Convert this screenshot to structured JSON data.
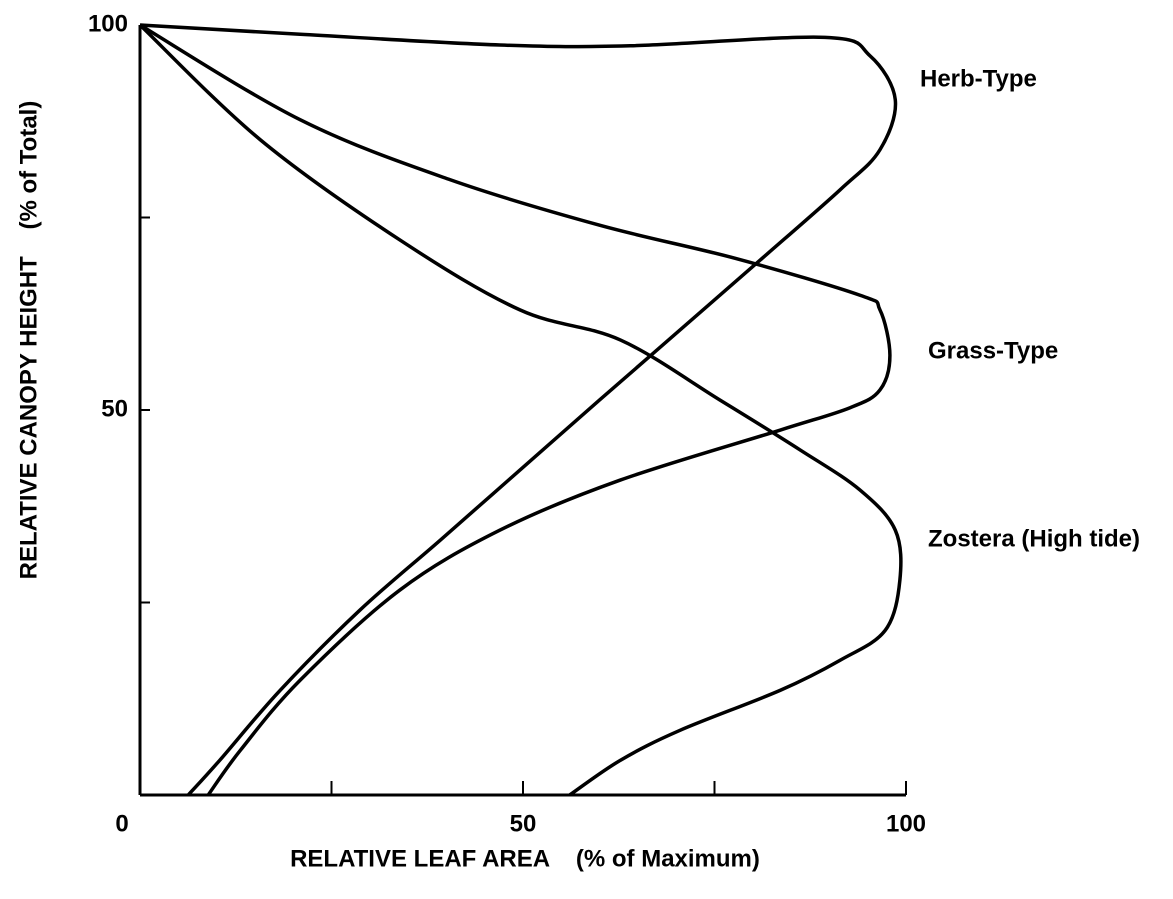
{
  "chart_data": {
    "type": "line",
    "x_label": "RELATIVE LEAF AREA    (% of Maximum)",
    "y_label": "RELATIVE CANOPY HEIGHT    (% of Total)",
    "xlim": [
      0,
      100
    ],
    "ylim": [
      0,
      100
    ],
    "xticks": [
      0,
      50,
      100
    ],
    "xminor_ticks": [
      25,
      75
    ],
    "yticks": [
      50,
      100
    ],
    "yminor_ticks": [
      25,
      75
    ],
    "series": [
      {
        "name": "Herb-Type",
        "color": "#000000",
        "x": [
          0,
          20.9,
          47,
          64,
          89.4,
          95.3,
          98.6,
          96.6,
          91.4,
          81,
          70.5,
          60,
          49.6,
          39.2,
          28.7,
          18.3,
          10.4,
          6.3
        ],
        "values": [
          100,
          98.8,
          97.4,
          97.3,
          98.4,
          96,
          90.3,
          83.8,
          78.6,
          69.5,
          60.4,
          51.3,
          42.2,
          33.1,
          24,
          13.6,
          4.5,
          0
        ]
      },
      {
        "name": "Grass-Type",
        "color": "#000000",
        "x": [
          0,
          20.9,
          40.5,
          60,
          77.7,
          94,
          96.6,
          97.9,
          96.6,
          92.7,
          83.6,
          62.7,
          47,
          33.9,
          20.9,
          13.1,
          8.9
        ],
        "values": [
          100,
          87.7,
          79.9,
          74,
          69.7,
          64.9,
          63,
          57.1,
          52.6,
          50.3,
          47.4,
          40.9,
          34.4,
          26.6,
          14.9,
          5.8,
          0
        ]
      },
      {
        "name": "Zostera (High tide)",
        "color": "#000000",
        "x": [
          0,
          15.7,
          33.9,
          49.6,
          62.7,
          75.7,
          86.2,
          94,
          98.6,
          99.2,
          97.3,
          91.4,
          83.6,
          70.5,
          62.7,
          56.1
        ],
        "values": [
          100,
          85.1,
          72.1,
          63,
          59.1,
          51.3,
          44.8,
          39.6,
          34.4,
          27.9,
          21.4,
          17.5,
          13.6,
          8.4,
          4.5,
          0
        ]
      }
    ]
  }
}
